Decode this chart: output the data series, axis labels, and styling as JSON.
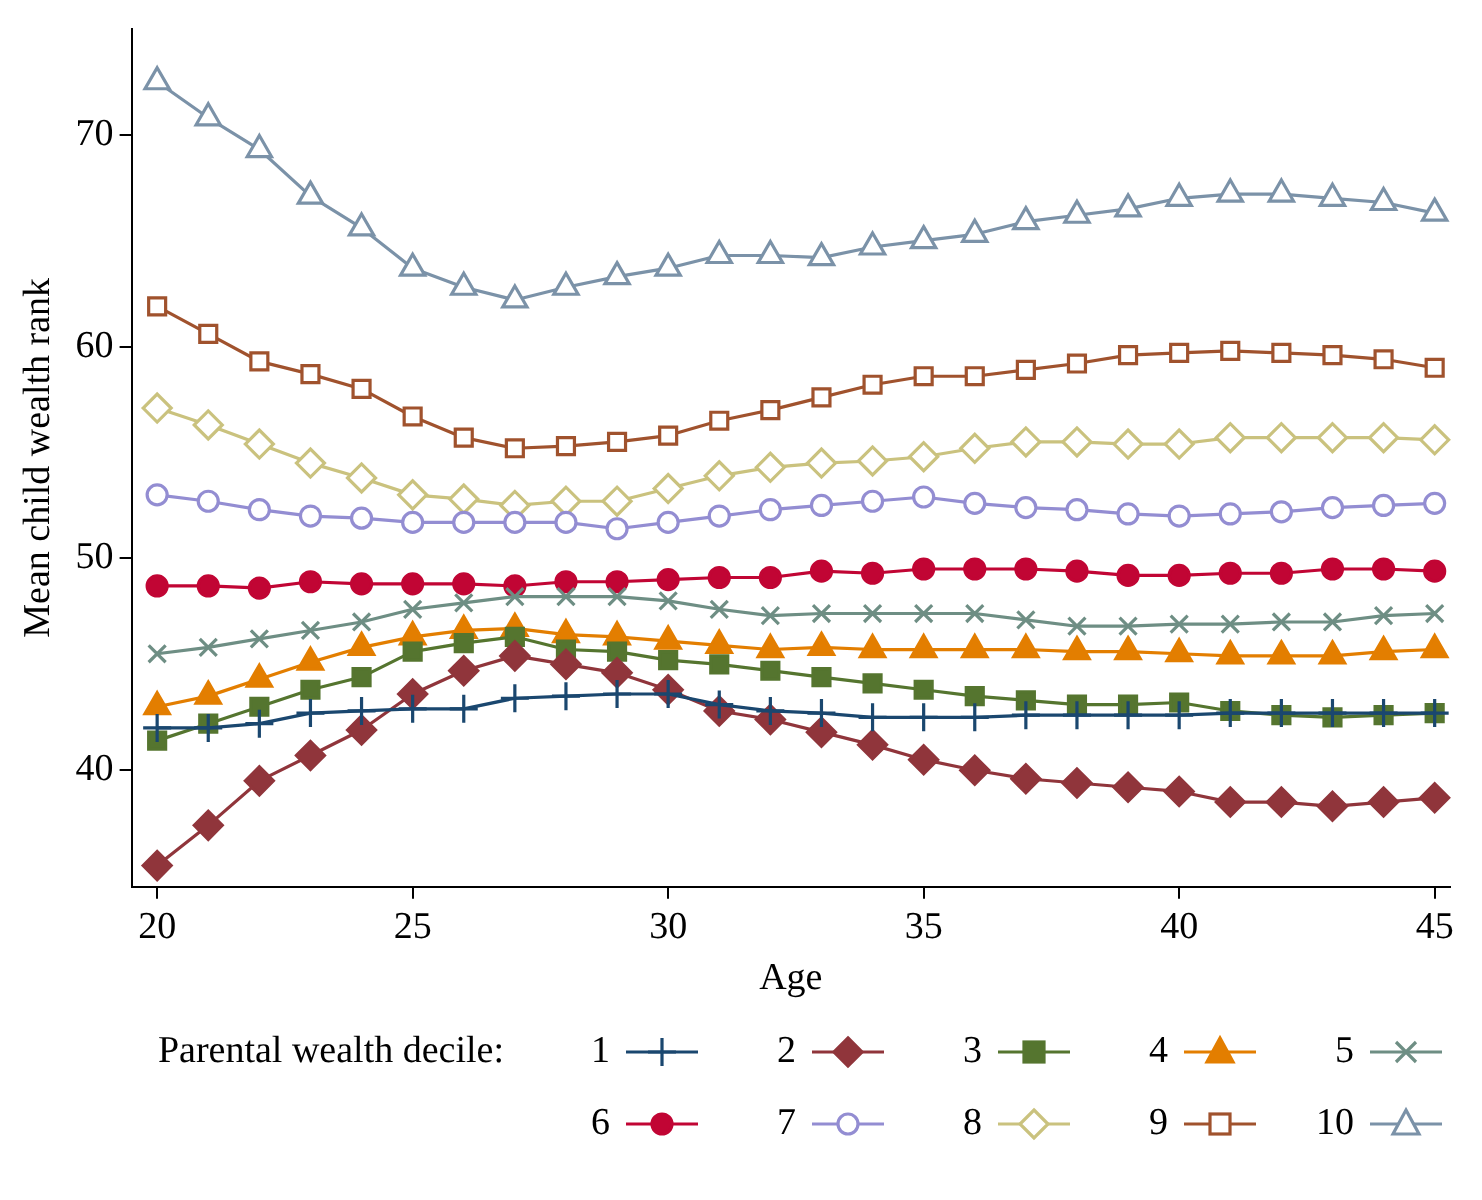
{
  "chart_data": {
    "type": "line",
    "xlabel": "Age",
    "ylabel": "Mean child wealth rank",
    "legend_title": "Parental wealth decile:",
    "legend": "bottom",
    "grid": false,
    "x": [
      20,
      21,
      22,
      23,
      24,
      25,
      26,
      27,
      28,
      29,
      30,
      31,
      32,
      33,
      34,
      35,
      36,
      37,
      38,
      39,
      40,
      41,
      42,
      43,
      44,
      45
    ],
    "xlim": [
      19.5,
      45.3
    ],
    "xticks": [
      20,
      25,
      30,
      35,
      40,
      45
    ],
    "ylim": [
      34.5,
      75
    ],
    "yticks": [
      40,
      50,
      60,
      70
    ],
    "series": [
      {
        "name": "1",
        "color": "#1a476f",
        "marker": "plus",
        "values": [
          42.0,
          42.0,
          42.2,
          42.7,
          42.8,
          42.9,
          42.9,
          43.4,
          43.5,
          43.6,
          43.6,
          43.1,
          42.8,
          42.7,
          42.5,
          42.5,
          42.5,
          42.6,
          42.6,
          42.6,
          42.6,
          42.7,
          42.7,
          42.7,
          42.7,
          42.7
        ]
      },
      {
        "name": "2",
        "color": "#90353b",
        "marker": "diamond",
        "values": [
          35.5,
          37.4,
          39.5,
          40.7,
          41.9,
          43.6,
          44.7,
          45.4,
          45.0,
          44.6,
          43.8,
          42.8,
          42.4,
          41.8,
          41.2,
          40.5,
          40.0,
          39.6,
          39.4,
          39.2,
          39.0,
          38.5,
          38.5,
          38.3,
          38.5,
          38.7
        ]
      },
      {
        "name": "3",
        "color": "#55752f",
        "marker": "square",
        "values": [
          41.4,
          42.2,
          43.0,
          43.8,
          44.4,
          45.6,
          46.0,
          46.3,
          45.7,
          45.6,
          45.2,
          45.0,
          44.7,
          44.4,
          44.1,
          43.8,
          43.5,
          43.3,
          43.1,
          43.1,
          43.2,
          42.8,
          42.6,
          42.5,
          42.6,
          42.7
        ]
      },
      {
        "name": "4",
        "color": "#e37e00",
        "marker": "triangle",
        "values": [
          43.0,
          43.5,
          44.3,
          45.1,
          45.8,
          46.3,
          46.6,
          46.7,
          46.4,
          46.3,
          46.1,
          45.9,
          45.7,
          45.8,
          45.7,
          45.7,
          45.7,
          45.7,
          45.6,
          45.6,
          45.5,
          45.4,
          45.4,
          45.4,
          45.6,
          45.7
        ]
      },
      {
        "name": "5",
        "color": "#6e8e84",
        "marker": "cross",
        "values": [
          45.5,
          45.8,
          46.2,
          46.6,
          47.0,
          47.6,
          47.9,
          48.2,
          48.2,
          48.2,
          48.0,
          47.6,
          47.3,
          47.4,
          47.4,
          47.4,
          47.4,
          47.1,
          46.8,
          46.8,
          46.9,
          46.9,
          47.0,
          47.0,
          47.3,
          47.4
        ]
      },
      {
        "name": "6",
        "color": "#c10534",
        "marker": "circle",
        "values": [
          48.7,
          48.7,
          48.6,
          48.9,
          48.8,
          48.8,
          48.8,
          48.7,
          48.9,
          48.9,
          49.0,
          49.1,
          49.1,
          49.4,
          49.3,
          49.5,
          49.5,
          49.5,
          49.4,
          49.2,
          49.2,
          49.3,
          49.3,
          49.5,
          49.5,
          49.4
        ]
      },
      {
        "name": "7",
        "color": "#938dd2",
        "marker": "circle-open",
        "values": [
          53.0,
          52.7,
          52.3,
          52.0,
          51.9,
          51.7,
          51.7,
          51.7,
          51.7,
          51.4,
          51.7,
          52.0,
          52.3,
          52.5,
          52.7,
          52.9,
          52.6,
          52.4,
          52.3,
          52.1,
          52.0,
          52.1,
          52.2,
          52.4,
          52.5,
          52.6
        ]
      },
      {
        "name": "8",
        "color": "#cac27e",
        "marker": "diamond-open",
        "values": [
          57.1,
          56.3,
          55.4,
          54.5,
          53.8,
          53.0,
          52.8,
          52.5,
          52.7,
          52.7,
          53.3,
          53.9,
          54.3,
          54.5,
          54.6,
          54.8,
          55.2,
          55.5,
          55.5,
          55.4,
          55.4,
          55.7,
          55.7,
          55.7,
          55.7,
          55.6
        ]
      },
      {
        "name": "9",
        "color": "#a0522d",
        "marker": "square-open",
        "values": [
          61.9,
          60.6,
          59.3,
          58.7,
          58.0,
          56.7,
          55.7,
          55.2,
          55.3,
          55.5,
          55.8,
          56.5,
          57.0,
          57.6,
          58.2,
          58.6,
          58.6,
          58.9,
          59.2,
          59.6,
          59.7,
          59.8,
          59.7,
          59.6,
          59.4,
          59.0
        ]
      },
      {
        "name": "10",
        "color": "#7b92a8",
        "marker": "triangle-open",
        "values": [
          72.5,
          70.8,
          69.3,
          67.1,
          65.6,
          63.7,
          62.8,
          62.2,
          62.8,
          63.3,
          63.7,
          64.3,
          64.3,
          64.2,
          64.7,
          65.0,
          65.3,
          65.9,
          66.2,
          66.5,
          67.0,
          67.2,
          67.2,
          67.0,
          66.8,
          66.3
        ]
      }
    ]
  }
}
